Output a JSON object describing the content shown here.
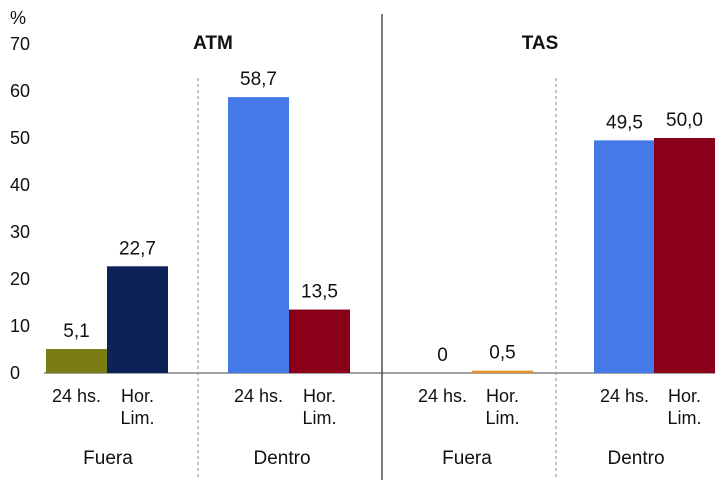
{
  "chart_data": {
    "type": "bar",
    "y_unit": "%",
    "ylim": [
      0,
      70
    ],
    "y_ticks": [
      "0",
      "10",
      "20",
      "30",
      "40",
      "50",
      "60",
      "70"
    ],
    "panels": [
      {
        "title": "ATM",
        "groups": [
          {
            "label": "Fuera",
            "bars": [
              {
                "category": [
                  "24 hs."
                ],
                "value": 5.1,
                "label": "5,1",
                "color": "#7a7d12"
              },
              {
                "category": [
                  "Hor.",
                  "Lim."
                ],
                "value": 22.7,
                "label": "22,7",
                "color": "#0c2259"
              }
            ]
          },
          {
            "label": "Dentro",
            "bars": [
              {
                "category": [
                  "24 hs."
                ],
                "value": 58.7,
                "label": "58,7",
                "color": "#4479e7"
              },
              {
                "category": [
                  "Hor.",
                  "Lim."
                ],
                "value": 13.5,
                "label": "13,5",
                "color": "#8b0019"
              }
            ]
          }
        ]
      },
      {
        "title": "TAS",
        "groups": [
          {
            "label": "Fuera",
            "bars": [
              {
                "category": [
                  "24 hs."
                ],
                "value": 0,
                "label": "0",
                "color": "#7a7d12"
              },
              {
                "category": [
                  "Hor.",
                  "Lim."
                ],
                "value": 0.5,
                "label": "0,5",
                "color": "#e6922a"
              }
            ]
          },
          {
            "label": "Dentro",
            "bars": [
              {
                "category": [
                  "24 hs."
                ],
                "value": 49.5,
                "label": "49,5",
                "color": "#4479e7"
              },
              {
                "category": [
                  "Hor.",
                  "Lim."
                ],
                "value": 50.0,
                "label": "50,0",
                "color": "#8b0019"
              }
            ]
          }
        ]
      }
    ]
  }
}
